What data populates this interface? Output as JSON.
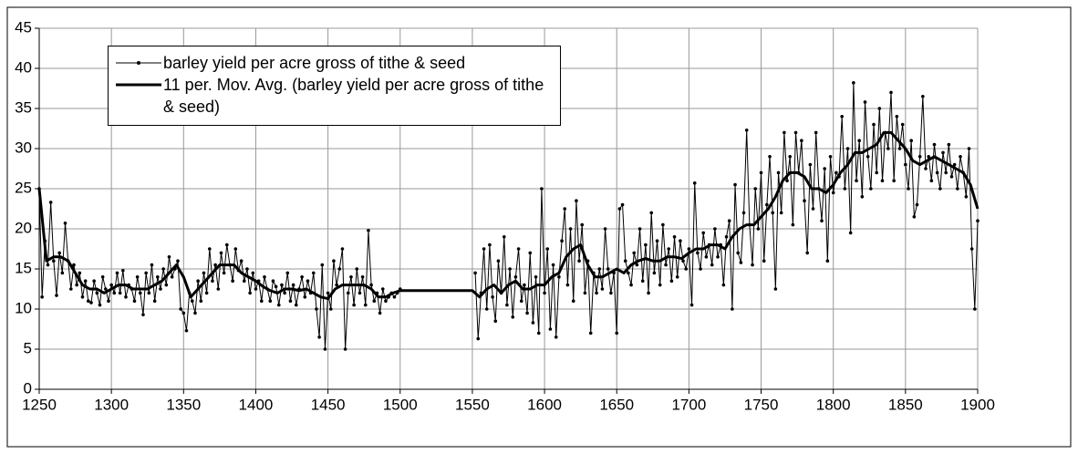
{
  "chart_data": {
    "type": "line",
    "xlim": [
      1250,
      1900
    ],
    "xticks": [
      1250,
      1300,
      1350,
      1400,
      1450,
      1500,
      1550,
      1600,
      1650,
      1700,
      1750,
      1800,
      1850,
      1900
    ],
    "ylim": [
      0,
      45
    ],
    "yticks": [
      0,
      5,
      10,
      15,
      20,
      25,
      30,
      35,
      40,
      45
    ],
    "grid": true,
    "legend": "top-left",
    "series": [
      {
        "name": "barley yield per acre gross of tithe & seed",
        "color": "#000000",
        "marker": true,
        "line_width": 1,
        "x": [
          1250,
          1252,
          1254,
          1256,
          1258,
          1260,
          1262,
          1264,
          1266,
          1268,
          1270,
          1272,
          1274,
          1276,
          1278,
          1280,
          1282,
          1284,
          1286,
          1288,
          1290,
          1292,
          1294,
          1296,
          1298,
          1300,
          1302,
          1304,
          1306,
          1308,
          1310,
          1312,
          1314,
          1316,
          1318,
          1320,
          1322,
          1324,
          1326,
          1328,
          1330,
          1332,
          1334,
          1336,
          1338,
          1340,
          1342,
          1344,
          1346,
          1348,
          1350,
          1352,
          1354,
          1356,
          1358,
          1360,
          1362,
          1364,
          1366,
          1368,
          1370,
          1372,
          1374,
          1376,
          1378,
          1380,
          1382,
          1384,
          1386,
          1388,
          1390,
          1392,
          1394,
          1396,
          1398,
          1400,
          1402,
          1404,
          1406,
          1408,
          1410,
          1412,
          1414,
          1416,
          1418,
          1420,
          1422,
          1424,
          1426,
          1428,
          1430,
          1432,
          1434,
          1436,
          1438,
          1440,
          1442,
          1444,
          1446,
          1448,
          1450,
          1452,
          1454,
          1456,
          1458,
          1460,
          1462,
          1464,
          1466,
          1468,
          1470,
          1472,
          1474,
          1476,
          1478,
          1480,
          1482,
          1484,
          1486,
          1488,
          1490,
          1492,
          1494,
          1496,
          1498,
          1500,
          1525,
          1552,
          1554,
          1556,
          1558,
          1560,
          1562,
          1564,
          1566,
          1568,
          1570,
          1572,
          1574,
          1576,
          1578,
          1580,
          1582,
          1584,
          1586,
          1588,
          1590,
          1592,
          1594,
          1596,
          1598,
          1600,
          1602,
          1604,
          1606,
          1608,
          1610,
          1612,
          1614,
          1616,
          1618,
          1620,
          1622,
          1624,
          1626,
          1628,
          1630,
          1632,
          1634,
          1636,
          1638,
          1640,
          1642,
          1644,
          1646,
          1648,
          1650,
          1652,
          1654,
          1656,
          1658,
          1660,
          1662,
          1664,
          1666,
          1668,
          1670,
          1672,
          1674,
          1676,
          1678,
          1680,
          1682,
          1684,
          1686,
          1688,
          1690,
          1692,
          1694,
          1696,
          1698,
          1700,
          1702,
          1704,
          1706,
          1708,
          1710,
          1712,
          1714,
          1716,
          1718,
          1720,
          1722,
          1724,
          1726,
          1728,
          1730,
          1732,
          1734,
          1736,
          1738,
          1740,
          1742,
          1744,
          1746,
          1748,
          1750,
          1752,
          1754,
          1756,
          1758,
          1760,
          1762,
          1764,
          1766,
          1768,
          1770,
          1772,
          1774,
          1776,
          1778,
          1780,
          1782,
          1784,
          1786,
          1788,
          1790,
          1792,
          1794,
          1796,
          1798,
          1800,
          1802,
          1804,
          1806,
          1808,
          1810,
          1812,
          1814,
          1816,
          1818,
          1820,
          1822,
          1824,
          1826,
          1828,
          1830,
          1832,
          1834,
          1836,
          1838,
          1840,
          1842,
          1844,
          1846,
          1848,
          1850,
          1852,
          1854,
          1856,
          1858,
          1860,
          1862,
          1864,
          1866,
          1868,
          1870,
          1872,
          1874,
          1876,
          1878,
          1880,
          1882,
          1884,
          1886,
          1888,
          1890,
          1892,
          1894,
          1896,
          1898,
          1900
        ],
        "values": [
          25,
          11.5,
          18.5,
          15.5,
          23.3,
          16,
          11.7,
          17,
          14.5,
          20.7,
          16,
          12.5,
          15.5,
          13,
          14.5,
          11.5,
          13.5,
          11,
          10.8,
          13.5,
          12,
          10.5,
          14,
          12.5,
          11,
          13,
          12,
          14.5,
          12,
          14.8,
          11.5,
          13,
          12.5,
          11,
          14,
          12,
          9.3,
          14.5,
          12,
          15.5,
          11,
          14,
          12.5,
          15,
          13,
          16.5,
          14,
          15,
          16,
          10,
          9.5,
          7.3,
          12,
          11,
          9.5,
          13.5,
          11,
          14.5,
          12,
          17.5,
          13.5,
          15.5,
          12.5,
          17,
          14.5,
          18,
          15.5,
          13.5,
          17.5,
          14.8,
          16,
          13.5,
          15,
          12,
          14.5,
          12.5,
          13.5,
          11,
          14,
          12.5,
          11,
          13.5,
          12.8,
          10.5,
          13,
          12,
          14.5,
          11,
          13,
          10.5,
          12.5,
          14,
          11.5,
          13.5,
          12,
          14.5,
          10,
          6.5,
          15.5,
          5,
          12,
          10,
          16,
          13,
          15,
          17.5,
          5,
          12,
          14,
          10.5,
          15,
          12,
          14,
          10.5,
          19.8,
          13,
          11,
          12,
          9.5,
          12.5,
          11,
          11.5,
          12,
          11.5,
          12,
          12.5,
          null,
          14.5,
          6.3,
          12,
          17.5,
          10,
          18,
          11.5,
          8.5,
          16,
          12,
          19,
          10.5,
          15,
          9,
          14,
          17.5,
          11,
          13,
          9.5,
          17,
          8.3,
          14,
          7,
          25,
          12,
          17.5,
          7.5,
          15.5,
          6.5,
          14,
          18.5,
          22.5,
          13,
          20,
          11,
          23.5,
          16,
          20.5,
          12,
          16,
          7,
          14.5,
          12,
          15,
          12.5,
          20,
          15,
          12,
          14.5,
          7,
          22.5,
          23,
          16,
          14.5,
          13,
          17,
          15.5,
          20,
          13.5,
          18,
          12,
          22,
          14.5,
          18.5,
          13,
          20.5,
          15.5,
          17.5,
          13.5,
          19,
          14,
          18.5,
          16,
          15,
          17.5,
          10.5,
          25.7,
          17,
          15,
          19.5,
          16.5,
          18,
          15.5,
          20,
          16.5,
          18,
          13,
          19,
          21,
          10,
          25.5,
          17,
          15.8,
          22,
          32.3,
          20.5,
          15.5,
          25,
          20,
          27,
          16,
          23,
          29,
          22,
          12.5,
          27,
          22,
          32,
          26,
          29,
          20.5,
          32,
          27,
          31,
          23.5,
          17,
          28,
          22.5,
          32,
          25,
          21,
          27.5,
          16,
          29,
          24.5,
          27,
          26.5,
          34,
          25,
          30,
          19.5,
          38.2,
          26,
          31,
          24,
          35.8,
          29,
          25,
          33,
          27,
          35,
          26,
          32,
          30,
          37,
          26,
          34,
          30,
          33,
          28,
          25,
          31,
          21.5,
          23,
          29,
          36.5,
          27.5,
          29,
          26,
          30.5,
          27,
          25,
          29.5,
          27,
          30.5,
          26.5,
          28,
          25,
          29,
          27,
          24,
          30,
          17.5,
          10,
          21
        ]
      },
      {
        "name": "11 per. Mov. Avg. (barley yield per acre gross of tithe & seed)",
        "color": "#000000",
        "marker": false,
        "line_width": 3,
        "x": [
          1250,
          1255,
          1260,
          1265,
          1270,
          1275,
          1280,
          1285,
          1290,
          1295,
          1300,
          1305,
          1310,
          1315,
          1320,
          1325,
          1330,
          1335,
          1340,
          1345,
          1350,
          1355,
          1360,
          1365,
          1370,
          1375,
          1380,
          1385,
          1390,
          1395,
          1400,
          1405,
          1410,
          1415,
          1420,
          1425,
          1430,
          1435,
          1440,
          1445,
          1450,
          1455,
          1460,
          1465,
          1470,
          1475,
          1480,
          1485,
          1490,
          1495,
          1500,
          1510,
          1520,
          1530,
          1540,
          1550,
          1555,
          1560,
          1565,
          1570,
          1575,
          1580,
          1585,
          1590,
          1595,
          1600,
          1605,
          1610,
          1615,
          1620,
          1625,
          1630,
          1635,
          1640,
          1645,
          1650,
          1655,
          1660,
          1665,
          1670,
          1675,
          1680,
          1685,
          1690,
          1695,
          1700,
          1705,
          1710,
          1715,
          1720,
          1725,
          1730,
          1735,
          1740,
          1745,
          1750,
          1755,
          1760,
          1765,
          1770,
          1775,
          1780,
          1785,
          1790,
          1795,
          1800,
          1805,
          1810,
          1815,
          1820,
          1825,
          1830,
          1835,
          1840,
          1845,
          1850,
          1855,
          1860,
          1865,
          1870,
          1875,
          1880,
          1885,
          1890,
          1895,
          1900
        ],
        "values": [
          25,
          16,
          16.5,
          16.5,
          16,
          14.5,
          13,
          12.5,
          12.5,
          12,
          12.5,
          13,
          13,
          12.5,
          12.5,
          12.5,
          13,
          13.5,
          14.5,
          15.5,
          14,
          11.5,
          12.5,
          13.5,
          14.5,
          15.5,
          15.5,
          15.5,
          14.5,
          14,
          13.5,
          12.8,
          12.3,
          12,
          12.5,
          12.5,
          12.3,
          12.5,
          12,
          11.5,
          11.3,
          12.5,
          13,
          13,
          13,
          13,
          12.5,
          11.5,
          11.5,
          12,
          12.3,
          12.3,
          12.3,
          12.3,
          12.3,
          12.3,
          11.5,
          12.5,
          13,
          12,
          13,
          13.5,
          12.5,
          12.5,
          13,
          13,
          14,
          14.5,
          16.5,
          17.5,
          18,
          15.5,
          14,
          14,
          14.5,
          15,
          14.5,
          15.5,
          16,
          16.3,
          16,
          16,
          16.5,
          16.5,
          16.3,
          17,
          17.5,
          17.5,
          18,
          18,
          17.5,
          19,
          20,
          20.5,
          20.5,
          21.5,
          22.5,
          24,
          26,
          27,
          27,
          26.5,
          25,
          25,
          24.5,
          25.5,
          27,
          28,
          29.5,
          29.5,
          30,
          30.5,
          32,
          32,
          31,
          30,
          28.5,
          28,
          28.5,
          29,
          28.5,
          28,
          27.5,
          27,
          25.5,
          22.5
        ]
      }
    ]
  }
}
